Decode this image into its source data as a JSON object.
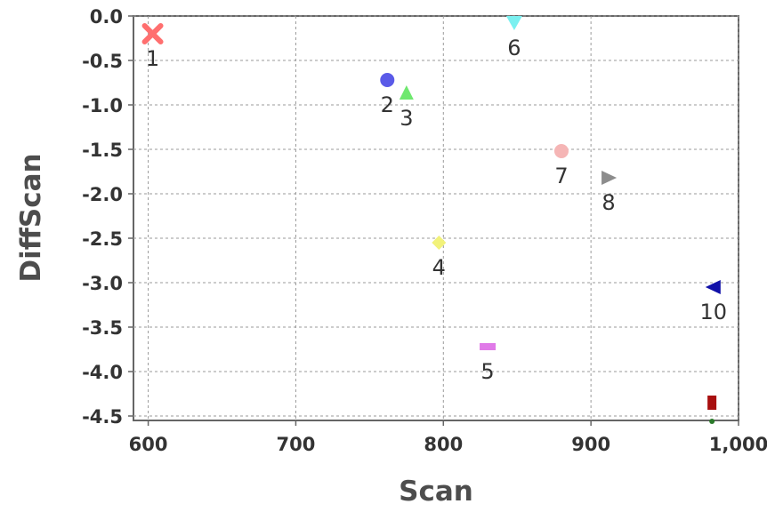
{
  "chart_data": {
    "type": "scatter",
    "xlabel": "Scan",
    "ylabel": "DiffScan",
    "xlim": [
      590,
      1000
    ],
    "ylim": [
      -4.55,
      0
    ],
    "grid": true,
    "x_ticks": [
      "600",
      "700",
      "800",
      "900",
      "1,000"
    ],
    "y_ticks": [
      "0.0",
      "-0.5",
      "-1.0",
      "-1.5",
      "-2.0",
      "-2.5",
      "-3.0",
      "-3.5",
      "-4.0",
      "-4.5"
    ],
    "points": [
      {
        "label": "1",
        "x": 603,
        "y": -0.2,
        "marker": "x",
        "color": "#ff6f6f"
      },
      {
        "label": "2",
        "x": 762,
        "y": -0.72,
        "marker": "circle",
        "color": "#5a5ae8"
      },
      {
        "label": "3",
        "x": 775,
        "y": -0.87,
        "marker": "triangle-up",
        "color": "#6fe86f"
      },
      {
        "label": "4",
        "x": 797,
        "y": -2.55,
        "marker": "diamond",
        "color": "#f2f27a"
      },
      {
        "label": "5",
        "x": 830,
        "y": -3.72,
        "marker": "rect",
        "color": "#e07ae8"
      },
      {
        "label": "6",
        "x": 848,
        "y": -0.08,
        "marker": "triangle-down",
        "color": "#7af0f0"
      },
      {
        "label": "7",
        "x": 880,
        "y": -1.52,
        "marker": "circle",
        "color": "#f5b5b5"
      },
      {
        "label": "8",
        "x": 912,
        "y": -1.82,
        "marker": "triangle-right",
        "color": "#8c8c8c"
      },
      {
        "label": "10",
        "x": 983,
        "y": -3.05,
        "marker": "triangle-left",
        "color": "#1010a8"
      },
      {
        "label": "",
        "x": 982,
        "y": -4.35,
        "marker": "rect-tall",
        "color": "#a80f0f"
      }
    ]
  }
}
